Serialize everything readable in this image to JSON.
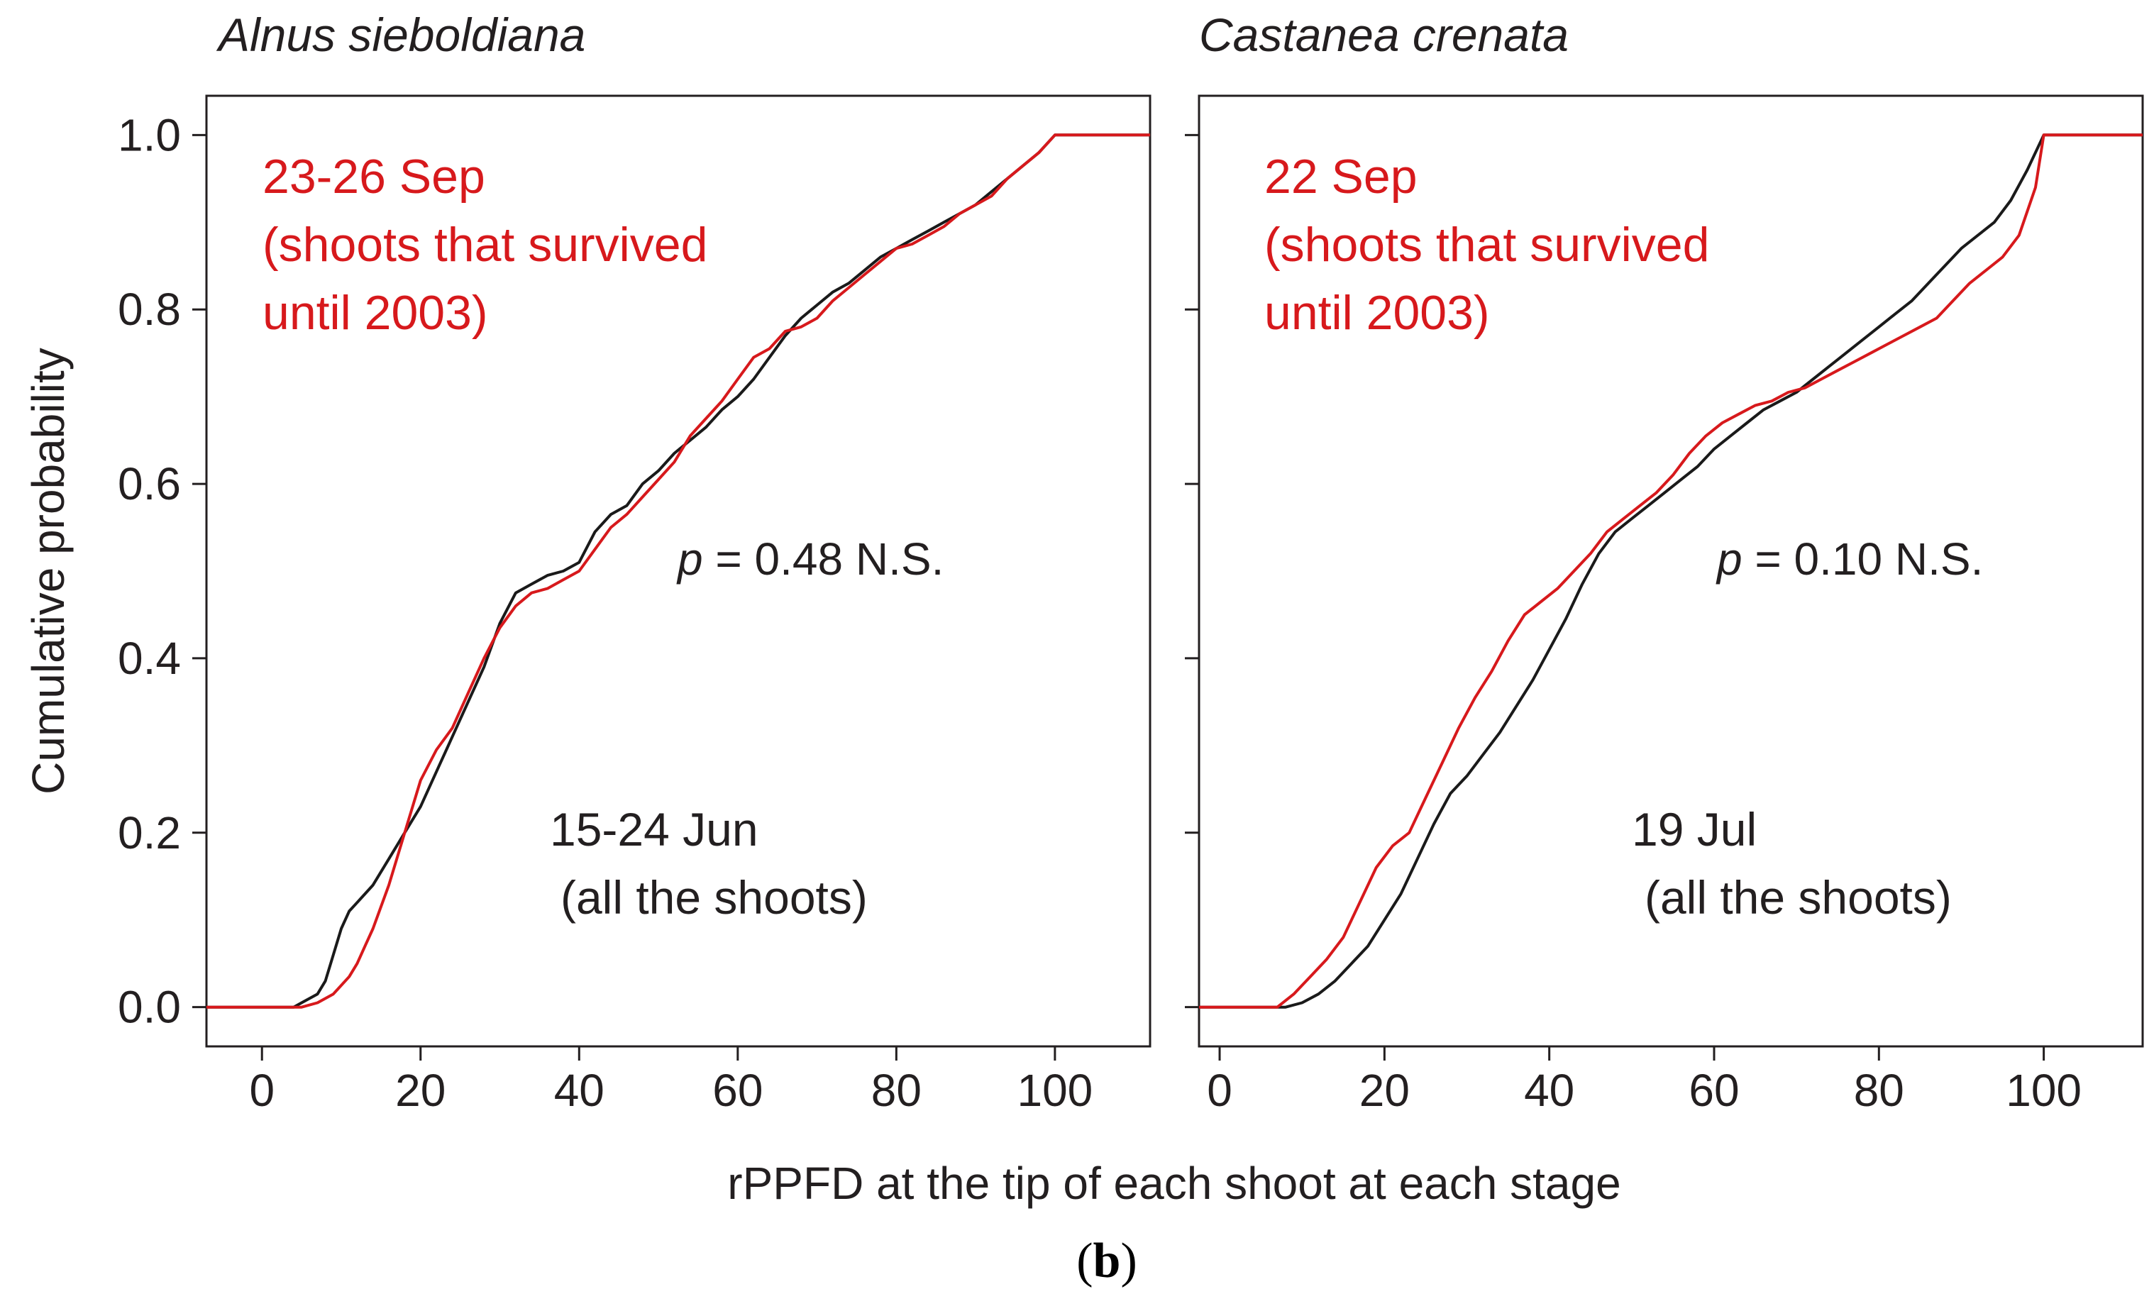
{
  "figure": {
    "caption_open": "(",
    "caption_letter": "b",
    "caption_close": ")",
    "shared_xlabel": "rPPFD at the tip of each shoot at each stage",
    "colors": {
      "stage1": "#1a1a1a",
      "stage2": "#d7191c",
      "frame": "#231f20"
    }
  },
  "chart_data": [
    {
      "type": "line",
      "title": "Alnus sieboldiana",
      "xlabel": "",
      "ylabel": "Cumulative probability",
      "xlim": [
        -7,
        112
      ],
      "ylim": [
        -0.045,
        1.045
      ],
      "x_ticks": [
        0,
        20,
        40,
        60,
        80,
        100
      ],
      "y_ticks": [
        0.0,
        0.2,
        0.4,
        0.6,
        0.8,
        1.0
      ],
      "y_tick_labels": [
        "0.0",
        "0.2",
        "0.4",
        "0.6",
        "0.8",
        "1.0"
      ],
      "grid": false,
      "annotations": {
        "red": [
          "23-26 Sep",
          "(shoots that survived",
          "until 2003)"
        ],
        "black": [
          "15-24 Jun",
          "(all the shoots)"
        ],
        "p_symbol": "p",
        "p_text": " = 0.48 N.S."
      },
      "series": [
        {
          "color": "#1a1a1a",
          "x": [
            -7,
            4,
            5,
            7,
            8,
            9,
            10,
            11,
            12,
            14,
            16,
            18,
            20,
            22,
            24,
            26,
            28,
            30,
            32,
            34,
            36,
            38,
            40,
            42,
            44,
            46,
            48,
            50,
            52,
            54,
            56,
            58,
            60,
            62,
            64,
            66,
            68,
            70,
            72,
            74,
            76,
            78,
            80,
            82,
            84,
            86,
            88,
            90,
            92,
            94,
            96,
            98,
            100,
            112
          ],
          "y": [
            0,
            0,
            0.005,
            0.015,
            0.03,
            0.06,
            0.09,
            0.11,
            0.12,
            0.14,
            0.17,
            0.2,
            0.23,
            0.27,
            0.31,
            0.35,
            0.39,
            0.44,
            0.475,
            0.485,
            0.495,
            0.5,
            0.51,
            0.545,
            0.565,
            0.575,
            0.6,
            0.615,
            0.635,
            0.65,
            0.665,
            0.685,
            0.7,
            0.72,
            0.745,
            0.77,
            0.79,
            0.805,
            0.82,
            0.83,
            0.845,
            0.86,
            0.87,
            0.88,
            0.89,
            0.9,
            0.91,
            0.92,
            0.935,
            0.95,
            0.965,
            0.98,
            1.0,
            1.0
          ]
        },
        {
          "color": "#d7191c",
          "x": [
            -7,
            5,
            7,
            9,
            11,
            12,
            13,
            14,
            16,
            18,
            20,
            22,
            24,
            26,
            28,
            30,
            32,
            34,
            36,
            38,
            40,
            42,
            44,
            46,
            48,
            50,
            52,
            54,
            56,
            58,
            60,
            62,
            64,
            66,
            68,
            70,
            72,
            74,
            76,
            78,
            80,
            82,
            84,
            86,
            88,
            90,
            92,
            94,
            96,
            98,
            100,
            112
          ],
          "y": [
            0,
            0,
            0.005,
            0.015,
            0.035,
            0.05,
            0.07,
            0.09,
            0.14,
            0.2,
            0.26,
            0.295,
            0.32,
            0.36,
            0.4,
            0.435,
            0.46,
            0.475,
            0.48,
            0.49,
            0.5,
            0.525,
            0.55,
            0.565,
            0.585,
            0.605,
            0.625,
            0.655,
            0.675,
            0.695,
            0.72,
            0.745,
            0.755,
            0.775,
            0.78,
            0.79,
            0.81,
            0.825,
            0.84,
            0.855,
            0.87,
            0.875,
            0.885,
            0.895,
            0.91,
            0.92,
            0.93,
            0.95,
            0.965,
            0.98,
            1.0,
            1.0
          ]
        }
      ]
    },
    {
      "type": "line",
      "title": "Castanea crenata",
      "xlabel": "",
      "ylabel": "",
      "xlim": [
        -2.5,
        112
      ],
      "ylim": [
        -0.045,
        1.045
      ],
      "x_ticks": [
        0,
        20,
        40,
        60,
        80,
        100
      ],
      "y_ticks": [
        0.0,
        0.2,
        0.4,
        0.6,
        0.8,
        1.0
      ],
      "grid": false,
      "annotations": {
        "red": [
          "22 Sep",
          "(shoots that survived",
          "until 2003)"
        ],
        "black": [
          "19 Jul",
          "(all the shoots)"
        ],
        "p_symbol": "p",
        "p_text": " = 0.10 N.S."
      },
      "series": [
        {
          "color": "#1a1a1a",
          "x": [
            -2.5,
            8,
            10,
            12,
            14,
            16,
            18,
            20,
            22,
            24,
            26,
            28,
            30,
            32,
            34,
            36,
            38,
            40,
            42,
            44,
            46,
            48,
            50,
            52,
            54,
            56,
            58,
            60,
            62,
            64,
            66,
            68,
            70,
            72,
            74,
            76,
            78,
            80,
            82,
            84,
            86,
            88,
            90,
            92,
            94,
            96,
            98,
            100,
            112
          ],
          "y": [
            0,
            0,
            0.005,
            0.015,
            0.03,
            0.05,
            0.07,
            0.1,
            0.13,
            0.17,
            0.21,
            0.245,
            0.265,
            0.29,
            0.315,
            0.345,
            0.375,
            0.41,
            0.445,
            0.485,
            0.52,
            0.545,
            0.56,
            0.575,
            0.59,
            0.605,
            0.62,
            0.64,
            0.655,
            0.67,
            0.685,
            0.695,
            0.705,
            0.72,
            0.735,
            0.75,
            0.765,
            0.78,
            0.795,
            0.81,
            0.83,
            0.85,
            0.87,
            0.885,
            0.9,
            0.925,
            0.96,
            1.0,
            1.0
          ]
        },
        {
          "color": "#d7191c",
          "x": [
            -2.5,
            7,
            9,
            11,
            13,
            15,
            17,
            19,
            21,
            23,
            25,
            27,
            29,
            31,
            33,
            35,
            37,
            39,
            41,
            43,
            45,
            47,
            49,
            51,
            53,
            55,
            57,
            59,
            61,
            63,
            65,
            67,
            69,
            71,
            73,
            75,
            77,
            79,
            81,
            83,
            85,
            87,
            89,
            91,
            93,
            95,
            97,
            99,
            100,
            112
          ],
          "y": [
            0,
            0,
            0.015,
            0.035,
            0.055,
            0.08,
            0.12,
            0.16,
            0.185,
            0.2,
            0.24,
            0.28,
            0.32,
            0.355,
            0.385,
            0.42,
            0.45,
            0.465,
            0.48,
            0.5,
            0.52,
            0.545,
            0.56,
            0.575,
            0.59,
            0.61,
            0.635,
            0.655,
            0.67,
            0.68,
            0.69,
            0.695,
            0.705,
            0.71,
            0.72,
            0.73,
            0.74,
            0.75,
            0.76,
            0.77,
            0.78,
            0.79,
            0.81,
            0.83,
            0.845,
            0.86,
            0.885,
            0.94,
            1.0,
            1.0
          ]
        }
      ]
    }
  ]
}
